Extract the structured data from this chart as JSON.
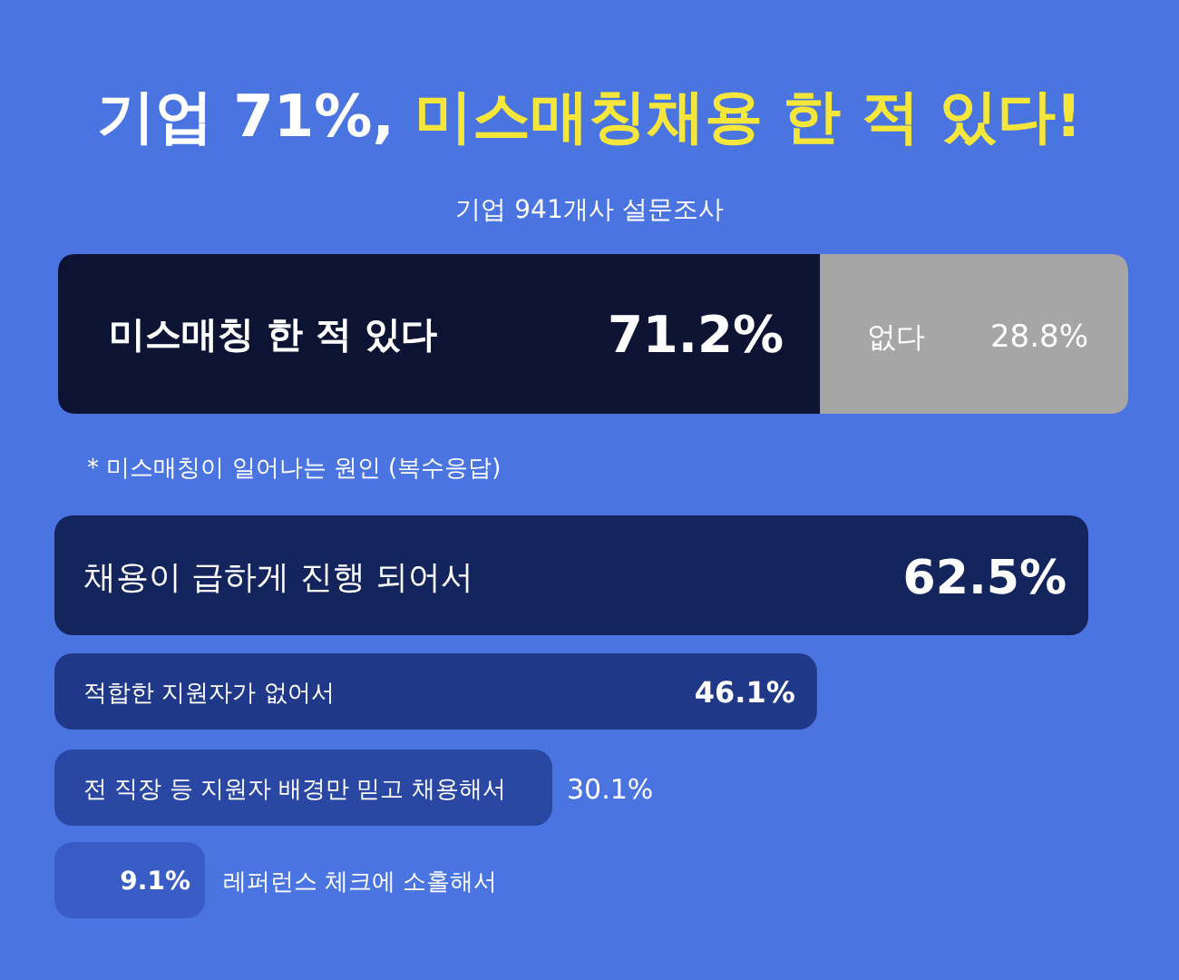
{
  "chart_data": [
    {
      "type": "bar",
      "orientation": "horizontal",
      "stacked": true,
      "relative": false,
      "title": "기업 71%, **미스매칭채용 한 적 있다!**",
      "subtitle": "기업 941개사 설문조사",
      "categories": [
        null
      ],
      "series": [
        {
          "name": "미스매칭 한 적 있다",
          "color": "#0d1433",
          "values": [
            71.2
          ],
          "value_labels": [
            "71.2%"
          ]
        },
        {
          "name": "없다",
          "color": "#a6a6a6",
          "values": [
            28.8
          ],
          "value_labels": [
            "28.8%"
          ]
        }
      ]
    },
    {
      "type": "bar",
      "orientation": "horizontal",
      "title": "* 미스매칭이 일어나는 원인 (복수응답)",
      "categories": [
        "채용이 급하게 진행 되어서",
        "적합한 지원자가 없어서",
        "전 직장 등 지원자 배경만 믿고 채용해서",
        "레퍼런스 체크에 소홀해서"
      ],
      "values": [
        62.5,
        46.1,
        30.1,
        9.1
      ],
      "value_labels": [
        "62.5%",
        "46.1%",
        "30.1%",
        "9.1%"
      ],
      "colors": [
        "#14255e",
        "#203888",
        "#2a47a4",
        "#3a5cc6"
      ]
    }
  ]
}
